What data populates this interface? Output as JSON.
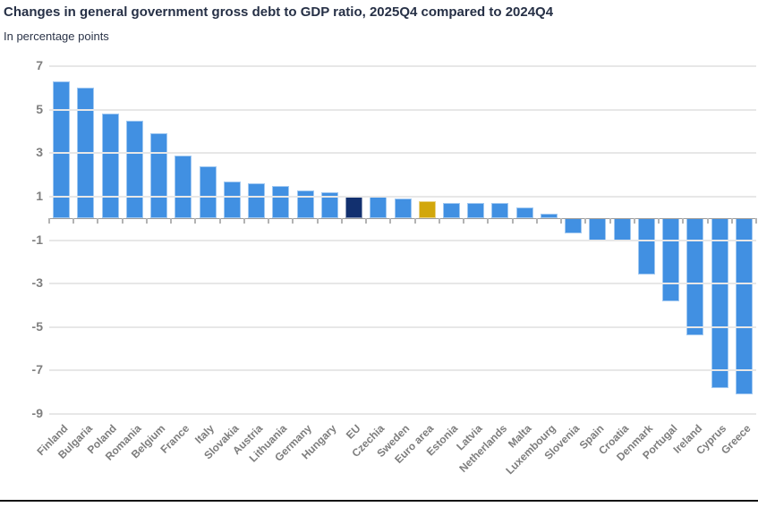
{
  "header": {
    "title": "Changes in general government gross debt to GDP ratio, 2025Q4 compared to 2024Q4",
    "subtitle": "In percentage points"
  },
  "colors": {
    "bar_default": "#4190E2",
    "bar_eu": "#12306F",
    "bar_euro_area": "#D2A70B",
    "gridline": "#E7E7E7",
    "zero_line": "#9B9B9B",
    "tick": "#B3B3B3",
    "title_text": "#263046",
    "axis_text": "#7F7F7F",
    "bottom_rule": "#141414"
  },
  "chart_data": {
    "type": "bar",
    "title": "Changes in general government gross debt to GDP ratio, 2025Q4 compared to 2024Q4",
    "subtitle": "In percentage points",
    "xlabel": "",
    "ylabel": "In percentage points",
    "ylim": [
      -9,
      7
    ],
    "yticks": [
      7,
      5,
      3,
      1,
      -1,
      -3,
      -5,
      -7,
      -9
    ],
    "grid": true,
    "legend": false,
    "categories": [
      "Finland",
      "Bulgaria",
      "Poland",
      "Romania",
      "Belgium",
      "France",
      "Italy",
      "Slovakia",
      "Austria",
      "Lithuania",
      "Germany",
      "Hungary",
      "EU",
      "Czechia",
      "Sweden",
      "Euro area",
      "Estonia",
      "Latvia",
      "Netherlands",
      "Malta",
      "Luxembourg",
      "Slovenia",
      "Spain",
      "Croatia",
      "Denmark",
      "Portugal",
      "Ireland",
      "Cyprus",
      "Greece"
    ],
    "values": [
      6.3,
      6.0,
      4.8,
      4.5,
      3.9,
      2.9,
      2.4,
      1.7,
      1.6,
      1.5,
      1.3,
      1.2,
      1.0,
      1.0,
      0.9,
      0.8,
      0.7,
      0.7,
      0.7,
      0.5,
      0.2,
      -0.7,
      -1.0,
      -1.0,
      -2.6,
      -3.8,
      -5.4,
      -7.8,
      -8.1
    ],
    "series_colors": {
      "default": "#4190E2",
      "EU": "#12306F",
      "Euro area": "#D2A70B"
    }
  }
}
